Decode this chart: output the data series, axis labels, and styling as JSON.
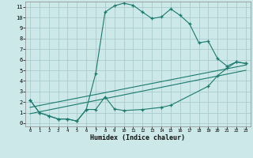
{
  "title": "",
  "xlabel": "Humidex (Indice chaleur)",
  "background_color": "#cce8e8",
  "grid_color": "#aacccc",
  "line_color": "#1a7a6e",
  "xlim": [
    -0.5,
    23.5
  ],
  "ylim": [
    -0.3,
    11.5
  ],
  "xticks": [
    0,
    1,
    2,
    3,
    4,
    5,
    6,
    7,
    8,
    9,
    10,
    11,
    12,
    13,
    14,
    15,
    16,
    17,
    18,
    19,
    20,
    21,
    22,
    23
  ],
  "yticks": [
    0,
    1,
    2,
    3,
    4,
    5,
    6,
    7,
    8,
    9,
    10,
    11
  ],
  "curve1_x": [
    0,
    1,
    2,
    3,
    4,
    5,
    6,
    7,
    8,
    9,
    10,
    11,
    12,
    13,
    14,
    15,
    16,
    17,
    18,
    19,
    20,
    21,
    22,
    23
  ],
  "curve1_y": [
    2.2,
    1.0,
    0.7,
    0.4,
    0.4,
    0.2,
    1.3,
    4.7,
    10.5,
    11.1,
    11.35,
    11.15,
    10.5,
    9.9,
    10.05,
    10.8,
    10.2,
    9.4,
    7.6,
    7.75,
    6.1,
    5.4,
    5.8,
    5.65
  ],
  "curve2_x": [
    0,
    1,
    2,
    3,
    4,
    5,
    6,
    7,
    8,
    9,
    10,
    12,
    14,
    15,
    19,
    20,
    21,
    22,
    23
  ],
  "curve2_y": [
    2.2,
    1.0,
    0.7,
    0.4,
    0.4,
    0.2,
    1.3,
    1.3,
    2.5,
    1.35,
    1.2,
    1.3,
    1.5,
    1.7,
    3.5,
    4.5,
    5.2,
    5.8,
    5.65
  ],
  "line1_x": [
    0,
    23
  ],
  "line1_y": [
    1.5,
    5.5
  ],
  "line2_x": [
    0,
    23
  ],
  "line2_y": [
    0.9,
    5.0
  ]
}
